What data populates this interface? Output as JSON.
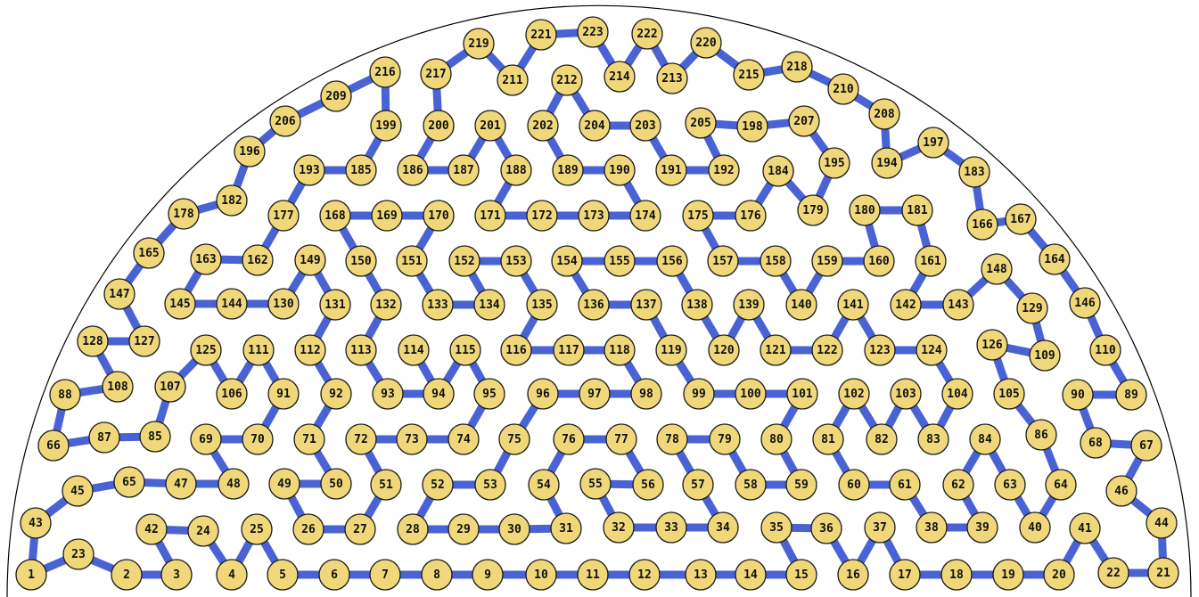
{
  "nodes": [
    {
      "id": 1,
      "label": "1"
    },
    {
      "id": 2,
      "label": "2"
    },
    {
      "id": 3,
      "label": "3"
    },
    {
      "id": 4,
      "label": "4"
    },
    {
      "id": 5,
      "label": "5"
    },
    {
      "id": 6,
      "label": "6"
    },
    {
      "id": 7,
      "label": "7"
    },
    {
      "id": 8,
      "label": "8"
    },
    {
      "id": 9,
      "label": "9"
    },
    {
      "id": 10,
      "label": "10"
    },
    {
      "id": 11,
      "label": "11"
    },
    {
      "id": 12,
      "label": "12"
    },
    {
      "id": 13,
      "label": "13"
    },
    {
      "id": 14,
      "label": "14"
    },
    {
      "id": 15,
      "label": "15"
    },
    {
      "id": 16,
      "label": "16"
    },
    {
      "id": 17,
      "label": "17"
    },
    {
      "id": 18,
      "label": "18"
    },
    {
      "id": 19,
      "label": "19"
    },
    {
      "id": 20,
      "label": "20"
    },
    {
      "id": 21,
      "label": "21"
    },
    {
      "id": 22,
      "label": "22"
    },
    {
      "id": 23,
      "label": "23"
    },
    {
      "id": 24,
      "label": "24"
    },
    {
      "id": 25,
      "label": "25"
    },
    {
      "id": 26,
      "label": "26"
    },
    {
      "id": 27,
      "label": "27"
    },
    {
      "id": 28,
      "label": "28"
    },
    {
      "id": 29,
      "label": "29"
    },
    {
      "id": 30,
      "label": "30"
    },
    {
      "id": 31,
      "label": "31"
    },
    {
      "id": 32,
      "label": "32"
    },
    {
      "id": 33,
      "label": "33"
    },
    {
      "id": 34,
      "label": "34"
    },
    {
      "id": 35,
      "label": "35"
    },
    {
      "id": 36,
      "label": "36"
    },
    {
      "id": 37,
      "label": "37"
    },
    {
      "id": 38,
      "label": "38"
    },
    {
      "id": 39,
      "label": "39"
    },
    {
      "id": 40,
      "label": "40"
    },
    {
      "id": 41,
      "label": "41"
    },
    {
      "id": 42,
      "label": "42"
    },
    {
      "id": 43,
      "label": "43"
    },
    {
      "id": 44,
      "label": "44"
    },
    {
      "id": 45,
      "label": "45"
    },
    {
      "id": 46,
      "label": "46"
    },
    {
      "id": 47,
      "label": "47"
    },
    {
      "id": 48,
      "label": "48"
    },
    {
      "id": 49,
      "label": "49"
    },
    {
      "id": 50,
      "label": "50"
    },
    {
      "id": 51,
      "label": "51"
    },
    {
      "id": 52,
      "label": "52"
    },
    {
      "id": 53,
      "label": "53"
    },
    {
      "id": 54,
      "label": "54"
    },
    {
      "id": 55,
      "label": "55"
    },
    {
      "id": 56,
      "label": "56"
    },
    {
      "id": 57,
      "label": "57"
    },
    {
      "id": 58,
      "label": "58"
    },
    {
      "id": 59,
      "label": "59"
    },
    {
      "id": 60,
      "label": "60"
    },
    {
      "id": 61,
      "label": "61"
    },
    {
      "id": 62,
      "label": "62"
    },
    {
      "id": 63,
      "label": "63"
    },
    {
      "id": 64,
      "label": "64"
    },
    {
      "id": 65,
      "label": "65"
    },
    {
      "id": 66,
      "label": "66"
    },
    {
      "id": 67,
      "label": "67"
    },
    {
      "id": 68,
      "label": "68"
    },
    {
      "id": 69,
      "label": "69"
    },
    {
      "id": 70,
      "label": "70"
    },
    {
      "id": 71,
      "label": "71"
    },
    {
      "id": 72,
      "label": "72"
    },
    {
      "id": 73,
      "label": "73"
    },
    {
      "id": 74,
      "label": "74"
    },
    {
      "id": 75,
      "label": "75"
    },
    {
      "id": 76,
      "label": "76"
    },
    {
      "id": 77,
      "label": "77"
    },
    {
      "id": 78,
      "label": "78"
    },
    {
      "id": 79,
      "label": "79"
    },
    {
      "id": 80,
      "label": "80"
    },
    {
      "id": 81,
      "label": "81"
    },
    {
      "id": 82,
      "label": "82"
    },
    {
      "id": 83,
      "label": "83"
    },
    {
      "id": 84,
      "label": "84"
    },
    {
      "id": 85,
      "label": "85"
    },
    {
      "id": 86,
      "label": "86"
    },
    {
      "id": 87,
      "label": "87"
    },
    {
      "id": 88,
      "label": "88"
    },
    {
      "id": 89,
      "label": "89"
    },
    {
      "id": 90,
      "label": "90"
    },
    {
      "id": 91,
      "label": "91"
    },
    {
      "id": 92,
      "label": "92"
    },
    {
      "id": 93,
      "label": "93"
    },
    {
      "id": 94,
      "label": "94"
    },
    {
      "id": 95,
      "label": "95"
    },
    {
      "id": 96,
      "label": "96"
    },
    {
      "id": 97,
      "label": "97"
    },
    {
      "id": 98,
      "label": "98"
    },
    {
      "id": 99,
      "label": "99"
    },
    {
      "id": 100,
      "label": "100"
    },
    {
      "id": 101,
      "label": "101"
    },
    {
      "id": 102,
      "label": "102"
    },
    {
      "id": 103,
      "label": "103"
    },
    {
      "id": 104,
      "label": "104"
    },
    {
      "id": 105,
      "label": "105"
    },
    {
      "id": 106,
      "label": "106"
    },
    {
      "id": 107,
      "label": "107"
    },
    {
      "id": 108,
      "label": "108"
    },
    {
      "id": 109,
      "label": "109"
    },
    {
      "id": 110,
      "label": "110"
    },
    {
      "id": 111,
      "label": "111"
    },
    {
      "id": 112,
      "label": "112"
    },
    {
      "id": 113,
      "label": "113"
    },
    {
      "id": 114,
      "label": "114"
    },
    {
      "id": 115,
      "label": "115"
    },
    {
      "id": 116,
      "label": "116"
    },
    {
      "id": 117,
      "label": "117"
    },
    {
      "id": 118,
      "label": "118"
    },
    {
      "id": 119,
      "label": "119"
    },
    {
      "id": 120,
      "label": "120"
    },
    {
      "id": 121,
      "label": "121"
    },
    {
      "id": 122,
      "label": "122"
    },
    {
      "id": 123,
      "label": "123"
    },
    {
      "id": 124,
      "label": "124"
    },
    {
      "id": 125,
      "label": "125"
    },
    {
      "id": 126,
      "label": "126"
    },
    {
      "id": 127,
      "label": "127"
    },
    {
      "id": 128,
      "label": "128"
    },
    {
      "id": 129,
      "label": "129"
    },
    {
      "id": 130,
      "label": "130"
    },
    {
      "id": 131,
      "label": "131"
    },
    {
      "id": 132,
      "label": "132"
    },
    {
      "id": 133,
      "label": "133"
    },
    {
      "id": 134,
      "label": "134"
    },
    {
      "id": 135,
      "label": "135"
    },
    {
      "id": 136,
      "label": "136"
    },
    {
      "id": 137,
      "label": "137"
    },
    {
      "id": 138,
      "label": "138"
    },
    {
      "id": 139,
      "label": "139"
    },
    {
      "id": 140,
      "label": "140"
    },
    {
      "id": 141,
      "label": "141"
    },
    {
      "id": 142,
      "label": "142"
    },
    {
      "id": 143,
      "label": "143"
    },
    {
      "id": 144,
      "label": "144"
    },
    {
      "id": 145,
      "label": "145"
    },
    {
      "id": 146,
      "label": "146"
    },
    {
      "id": 147,
      "label": "147"
    },
    {
      "id": 148,
      "label": "148"
    },
    {
      "id": 149,
      "label": "149"
    },
    {
      "id": 150,
      "label": "150"
    },
    {
      "id": 151,
      "label": "151"
    },
    {
      "id": 152,
      "label": "152"
    },
    {
      "id": 153,
      "label": "153"
    },
    {
      "id": 154,
      "label": "154"
    },
    {
      "id": 155,
      "label": "155"
    },
    {
      "id": 156,
      "label": "156"
    },
    {
      "id": 157,
      "label": "157"
    },
    {
      "id": 158,
      "label": "158"
    },
    {
      "id": 159,
      "label": "159"
    },
    {
      "id": 160,
      "label": "160"
    },
    {
      "id": 161,
      "label": "161"
    },
    {
      "id": 162,
      "label": "162"
    },
    {
      "id": 163,
      "label": "163"
    },
    {
      "id": 164,
      "label": "164"
    },
    {
      "id": 165,
      "label": "165"
    },
    {
      "id": 166,
      "label": "166"
    },
    {
      "id": 167,
      "label": "167"
    },
    {
      "id": 168,
      "label": "168"
    },
    {
      "id": 169,
      "label": "169"
    },
    {
      "id": 170,
      "label": "170"
    },
    {
      "id": 171,
      "label": "171"
    },
    {
      "id": 172,
      "label": "172"
    },
    {
      "id": 173,
      "label": "173"
    },
    {
      "id": 174,
      "label": "174"
    },
    {
      "id": 175,
      "label": "175"
    },
    {
      "id": 176,
      "label": "176"
    },
    {
      "id": 177,
      "label": "177"
    },
    {
      "id": 178,
      "label": "178"
    },
    {
      "id": 179,
      "label": "179"
    },
    {
      "id": 180,
      "label": "180"
    },
    {
      "id": 181,
      "label": "181"
    },
    {
      "id": 182,
      "label": "182"
    },
    {
      "id": 183,
      "label": "183"
    },
    {
      "id": 184,
      "label": "184"
    },
    {
      "id": 185,
      "label": "185"
    },
    {
      "id": 186,
      "label": "186"
    },
    {
      "id": 187,
      "label": "187"
    },
    {
      "id": 188,
      "label": "188"
    },
    {
      "id": 189,
      "label": "189"
    },
    {
      "id": 190,
      "label": "190"
    },
    {
      "id": 191,
      "label": "191"
    },
    {
      "id": 192,
      "label": "192"
    },
    {
      "id": 193,
      "label": "193"
    },
    {
      "id": 194,
      "label": "194"
    },
    {
      "id": 195,
      "label": "195"
    },
    {
      "id": 196,
      "label": "196"
    },
    {
      "id": 197,
      "label": "197"
    },
    {
      "id": 198,
      "label": "198"
    },
    {
      "id": 199,
      "label": "199"
    },
    {
      "id": 200,
      "label": "200"
    },
    {
      "id": 201,
      "label": "201"
    },
    {
      "id": 202,
      "label": "202"
    },
    {
      "id": 203,
      "label": "203"
    },
    {
      "id": 204,
      "label": "204"
    },
    {
      "id": 205,
      "label": "205"
    },
    {
      "id": 206,
      "label": "206"
    },
    {
      "id": 207,
      "label": "207"
    },
    {
      "id": 208,
      "label": "208"
    },
    {
      "id": 209,
      "label": "209"
    },
    {
      "id": 210,
      "label": "210"
    },
    {
      "id": 211,
      "label": "211"
    },
    {
      "id": 212,
      "label": "212"
    },
    {
      "id": 213,
      "label": "213"
    },
    {
      "id": 214,
      "label": "214"
    },
    {
      "id": 215,
      "label": "215"
    },
    {
      "id": 216,
      "label": "216"
    },
    {
      "id": 217,
      "label": "217"
    },
    {
      "id": 218,
      "label": "218"
    },
    {
      "id": 219,
      "label": "219"
    },
    {
      "id": 220,
      "label": "220"
    },
    {
      "id": 221,
      "label": "221"
    },
    {
      "id": 222,
      "label": "222"
    },
    {
      "id": 223,
      "label": "223"
    }
  ],
  "edges": [
    [
      1,
      43
    ],
    [
      43,
      45
    ],
    [
      45,
      65
    ],
    [
      65,
      47
    ],
    [
      47,
      48
    ],
    [
      48,
      69
    ],
    [
      69,
      70
    ],
    [
      70,
      91
    ],
    [
      91,
      111
    ],
    [
      111,
      106
    ],
    [
      106,
      125
    ],
    [
      125,
      107
    ],
    [
      107,
      85
    ],
    [
      85,
      87
    ],
    [
      87,
      66
    ],
    [
      66,
      88
    ],
    [
      88,
      108
    ],
    [
      108,
      128
    ],
    [
      128,
      127
    ],
    [
      127,
      147
    ],
    [
      147,
      165
    ],
    [
      165,
      178
    ],
    [
      178,
      182
    ],
    [
      182,
      196
    ],
    [
      196,
      206
    ],
    [
      206,
      209
    ],
    [
      209,
      216
    ],
    [
      216,
      199
    ],
    [
      199,
      185
    ],
    [
      185,
      193
    ],
    [
      193,
      177
    ],
    [
      177,
      162
    ],
    [
      162,
      163
    ],
    [
      163,
      145
    ],
    [
      145,
      144
    ],
    [
      144,
      130
    ],
    [
      130,
      149
    ],
    [
      149,
      131
    ],
    [
      131,
      112
    ],
    [
      112,
      92
    ],
    [
      92,
      71
    ],
    [
      71,
      50
    ],
    [
      50,
      49
    ],
    [
      49,
      26
    ],
    [
      26,
      27
    ],
    [
      27,
      51
    ],
    [
      51,
      72
    ],
    [
      72,
      73
    ],
    [
      73,
      74
    ],
    [
      74,
      95
    ],
    [
      95,
      115
    ],
    [
      115,
      94
    ],
    [
      94,
      114
    ],
    [
      114,
      94
    ],
    [
      94,
      93
    ],
    [
      93,
      113
    ],
    [
      113,
      132
    ],
    [
      132,
      150
    ],
    [
      150,
      168
    ],
    [
      168,
      169
    ],
    [
      169,
      170
    ],
    [
      170,
      151
    ],
    [
      151,
      133
    ],
    [
      133,
      134
    ],
    [
      134,
      152
    ],
    [
      152,
      153
    ],
    [
      153,
      135
    ],
    [
      135,
      116
    ],
    [
      116,
      117
    ],
    [
      117,
      118
    ],
    [
      118,
      98
    ],
    [
      98,
      97
    ],
    [
      97,
      96
    ],
    [
      96,
      75
    ],
    [
      75,
      53
    ],
    [
      53,
      52
    ],
    [
      52,
      28
    ],
    [
      28,
      29
    ],
    [
      29,
      30
    ],
    [
      30,
      31
    ],
    [
      31,
      54
    ],
    [
      54,
      76
    ],
    [
      76,
      77
    ],
    [
      77,
      56
    ],
    [
      56,
      55
    ],
    [
      55,
      32
    ],
    [
      32,
      33
    ],
    [
      33,
      34
    ],
    [
      34,
      57
    ],
    [
      57,
      78
    ],
    [
      78,
      79
    ],
    [
      79,
      58
    ],
    [
      58,
      59
    ],
    [
      59,
      80
    ],
    [
      80,
      101
    ],
    [
      101,
      100
    ],
    [
      100,
      99
    ],
    [
      99,
      119
    ],
    [
      119,
      137
    ],
    [
      137,
      136
    ],
    [
      136,
      154
    ],
    [
      154,
      155
    ],
    [
      155,
      156
    ],
    [
      156,
      138
    ],
    [
      138,
      120
    ],
    [
      120,
      139
    ],
    [
      139,
      121
    ],
    [
      121,
      122
    ],
    [
      122,
      141
    ],
    [
      141,
      123
    ],
    [
      123,
      124
    ],
    [
      124,
      104
    ],
    [
      104,
      83
    ],
    [
      83,
      103
    ],
    [
      103,
      82
    ],
    [
      82,
      102
    ],
    [
      102,
      81
    ],
    [
      81,
      60
    ],
    [
      60,
      61
    ],
    [
      61,
      38
    ],
    [
      38,
      39
    ],
    [
      39,
      62
    ],
    [
      62,
      84
    ],
    [
      84,
      63
    ],
    [
      63,
      40
    ],
    [
      40,
      64
    ],
    [
      64,
      86
    ],
    [
      86,
      105
    ],
    [
      105,
      126
    ],
    [
      126,
      109
    ],
    [
      109,
      129
    ],
    [
      129,
      148
    ],
    [
      148,
      143
    ],
    [
      143,
      142
    ],
    [
      142,
      161
    ],
    [
      161,
      181
    ],
    [
      181,
      180
    ],
    [
      180,
      160
    ],
    [
      160,
      159
    ],
    [
      159,
      140
    ],
    [
      140,
      158
    ],
    [
      158,
      157
    ],
    [
      157,
      175
    ],
    [
      175,
      176
    ],
    [
      176,
      184
    ],
    [
      184,
      179
    ],
    [
      179,
      195
    ],
    [
      195,
      207
    ],
    [
      207,
      198
    ],
    [
      198,
      205
    ],
    [
      205,
      192
    ],
    [
      192,
      191
    ],
    [
      191,
      203
    ],
    [
      203,
      204
    ],
    [
      204,
      212
    ],
    [
      212,
      202
    ],
    [
      202,
      189
    ],
    [
      189,
      190
    ],
    [
      190,
      174
    ],
    [
      174,
      173
    ],
    [
      173,
      172
    ],
    [
      172,
      171
    ],
    [
      171,
      188
    ],
    [
      188,
      201
    ],
    [
      201,
      187
    ],
    [
      187,
      186
    ],
    [
      186,
      200
    ],
    [
      200,
      217
    ],
    [
      217,
      219
    ],
    [
      219,
      211
    ],
    [
      211,
      221
    ],
    [
      221,
      223
    ],
    [
      223,
      214
    ],
    [
      214,
      222
    ],
    [
      222,
      213
    ],
    [
      213,
      220
    ],
    [
      220,
      215
    ],
    [
      215,
      218
    ],
    [
      218,
      210
    ],
    [
      210,
      208
    ],
    [
      208,
      194
    ],
    [
      194,
      197
    ],
    [
      197,
      183
    ],
    [
      183,
      166
    ],
    [
      166,
      167
    ],
    [
      167,
      164
    ],
    [
      164,
      146
    ],
    [
      146,
      110
    ],
    [
      110,
      89
    ],
    [
      89,
      90
    ],
    [
      90,
      68
    ],
    [
      68,
      67
    ],
    [
      67,
      46
    ],
    [
      46,
      44
    ],
    [
      44,
      21
    ],
    [
      21,
      22
    ],
    [
      22,
      41
    ],
    [
      41,
      20
    ],
    [
      20,
      19
    ],
    [
      19,
      18
    ],
    [
      18,
      17
    ],
    [
      17,
      37
    ],
    [
      37,
      16
    ],
    [
      16,
      36
    ],
    [
      36,
      35
    ],
    [
      35,
      15
    ],
    [
      15,
      14
    ],
    [
      14,
      13
    ],
    [
      13,
      12
    ],
    [
      12,
      11
    ],
    [
      11,
      10
    ],
    [
      10,
      9
    ],
    [
      9,
      8
    ],
    [
      8,
      7
    ],
    [
      7,
      6
    ],
    [
      6,
      5
    ],
    [
      5,
      25
    ],
    [
      25,
      4
    ],
    [
      4,
      24
    ],
    [
      24,
      42
    ],
    [
      42,
      3
    ],
    [
      3,
      2
    ],
    [
      2,
      23
    ],
    [
      23,
      1
    ]
  ],
  "colors": {
    "node_fill": "#efd77a",
    "node_stroke": "#1a1a1a",
    "edge": "#4a63d4",
    "boundary": "#000000"
  }
}
